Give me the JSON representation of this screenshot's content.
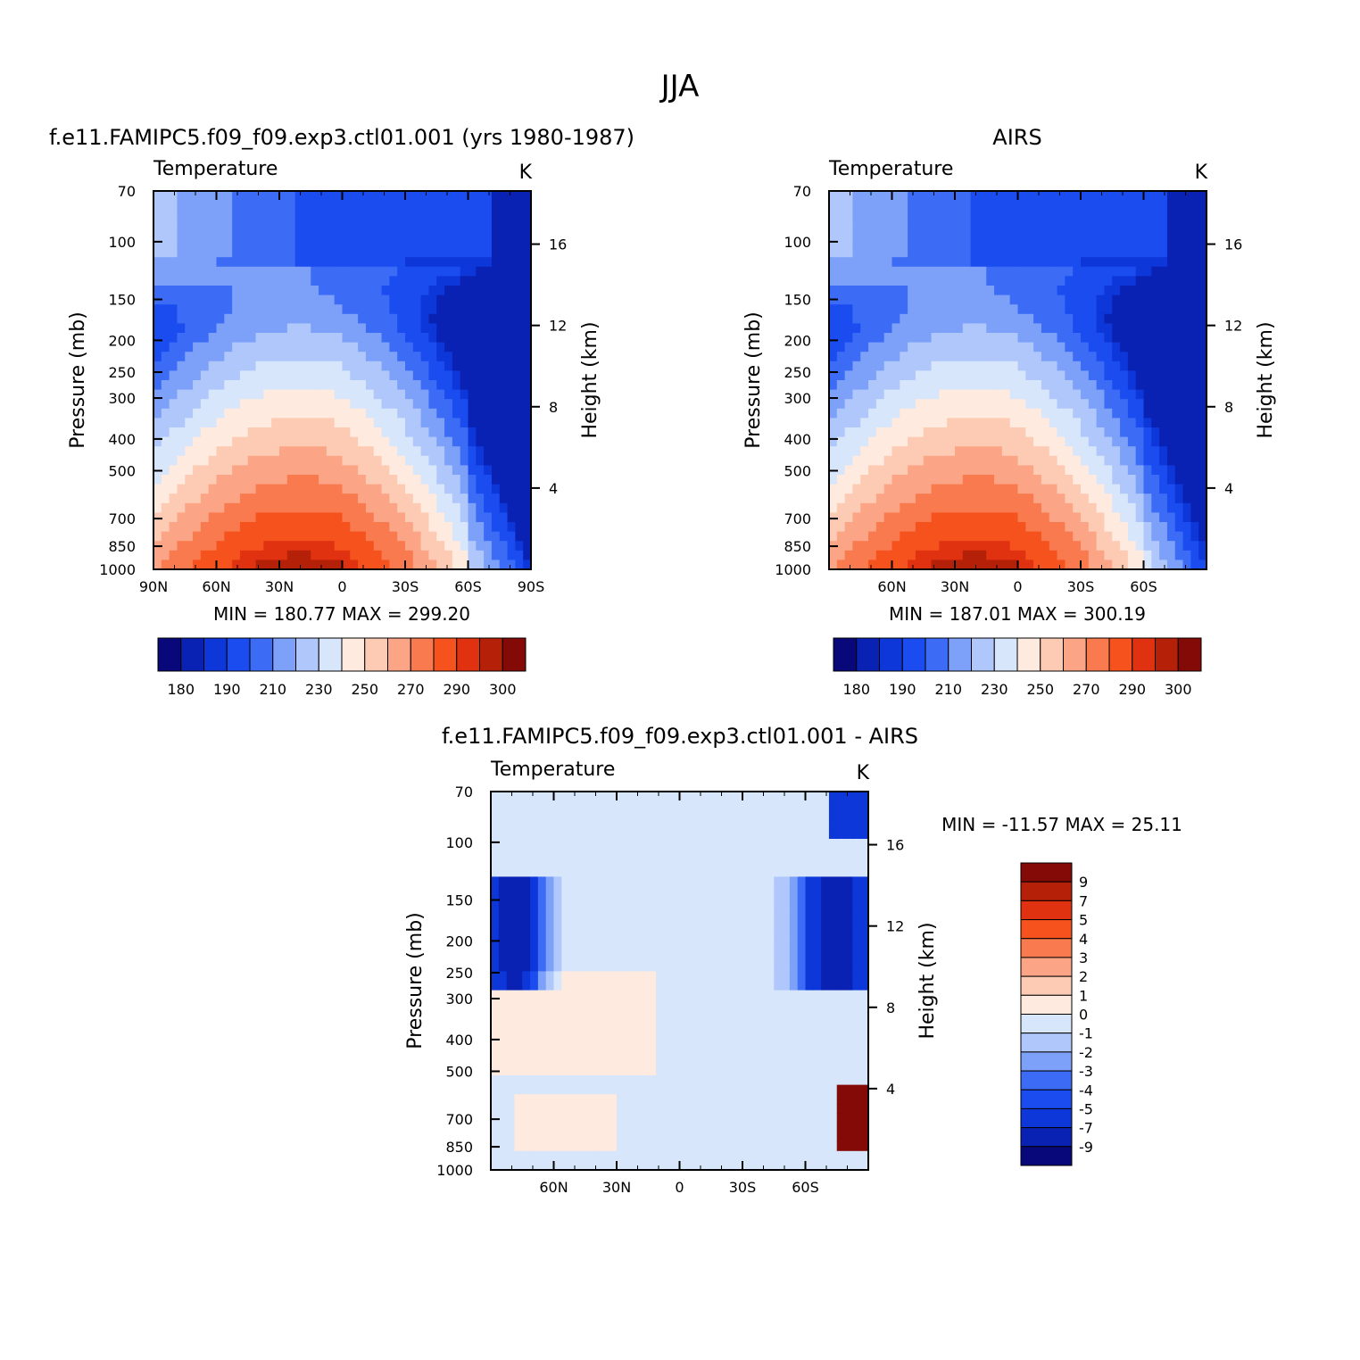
{
  "figure_title": "JJA",
  "colors": {
    "levels_abs": [
      "#08087a",
      "#0a22b4",
      "#0d37d8",
      "#1a4cf0",
      "#3c6cf5",
      "#7da0f8",
      "#b0c7fb",
      "#d7e6fa",
      "#feeade",
      "#fdcbb3",
      "#fca586",
      "#f87a4e",
      "#f6521e",
      "#e03210",
      "#b42008",
      "#830a07"
    ],
    "levels_diff": [
      "#08087a",
      "#0a22b4",
      "#0d37d8",
      "#1a4cf0",
      "#3c6cf5",
      "#7da0f8",
      "#b0c7fb",
      "#d7e6fa",
      "#feeade",
      "#fdcbb3",
      "#fca586",
      "#f87a4e",
      "#f6521e",
      "#e03210",
      "#b42008",
      "#830a07"
    ]
  },
  "panels": [
    {
      "title": "f.e11.FAMIPC5.f09_f09.exp3.ctl01.001 (yrs 1980-1987)",
      "left_label": "Temperature",
      "unit": "K",
      "y_label": "Pressure (mb)",
      "y2_label": "Height (km)",
      "stats": "MIN = 180.77   MAX = 299.20",
      "x_ticks": [
        "90N",
        "60N",
        "30N",
        "0",
        "30S",
        "60S",
        "90S"
      ],
      "p_ticks": [
        "70",
        "100",
        "150",
        "200",
        "250",
        "300",
        "400",
        "500",
        "700",
        "850",
        "1000"
      ],
      "h_ticks": [
        "16",
        "12",
        "8",
        "4"
      ],
      "colorbar_labels": [
        "180",
        "190",
        "210",
        "230",
        "250",
        "270",
        "290",
        "300"
      ]
    },
    {
      "title": "AIRS",
      "left_label": "Temperature",
      "unit": "K",
      "y_label": "Pressure (mb)",
      "y2_label": "Height (km)",
      "stats": "MIN = 187.01   MAX = 300.19",
      "x_ticks": [
        "",
        "60N",
        "30N",
        "0",
        "30S",
        "60S",
        ""
      ],
      "p_ticks": [
        "70",
        "100",
        "150",
        "200",
        "250",
        "300",
        "400",
        "500",
        "700",
        "850",
        "1000"
      ],
      "h_ticks": [
        "16",
        "12",
        "8",
        "4"
      ],
      "colorbar_labels": [
        "180",
        "190",
        "210",
        "230",
        "250",
        "270",
        "290",
        "300"
      ]
    },
    {
      "title": "f.e11.FAMIPC5.f09_f09.exp3.ctl01.001 - AIRS",
      "left_label": "Temperature",
      "unit": "K",
      "y_label": "Pressure (mb)",
      "y2_label": "Height (km)",
      "stats": "MIN = -11.57   MAX =   25.11",
      "x_ticks": [
        "",
        "60N",
        "30N",
        "0",
        "30S",
        "60S",
        ""
      ],
      "p_ticks": [
        "70",
        "100",
        "150",
        "200",
        "250",
        "300",
        "400",
        "500",
        "700",
        "850",
        "1000"
      ],
      "h_ticks": [
        "16",
        "12",
        "8",
        "4"
      ],
      "colorbar_labels": [
        "9",
        "7",
        "5",
        "4",
        "3",
        "2",
        "1",
        "0",
        "-1",
        "-2",
        "-3",
        "-4",
        "-5",
        "-7",
        "-9"
      ]
    }
  ],
  "chart_data": [
    {
      "type": "heatmap",
      "title": "f.e11.FAMIPC5.f09_f09.exp3.ctl01.001 (yrs 1980-1987)",
      "variable": "Temperature",
      "unit": "K",
      "xlabel": "",
      "ylabel": "Pressure (mb)",
      "y2label": "Height (km)",
      "x": [
        "90N",
        "60N",
        "30N",
        "0",
        "30S",
        "60S",
        "90S"
      ],
      "x_values": [
        90,
        60,
        30,
        0,
        -30,
        -60,
        -90
      ],
      "y_pressure": [
        70,
        100,
        150,
        200,
        250,
        300,
        400,
        500,
        700,
        850,
        1000
      ],
      "ylim": [
        1000,
        70
      ],
      "y_log_scale": true,
      "contour_levels": [
        180,
        185,
        190,
        200,
        210,
        220,
        230,
        240,
        250,
        260,
        270,
        280,
        290,
        295,
        300
      ],
      "min": 180.77,
      "max": 299.2
    },
    {
      "type": "heatmap",
      "title": "AIRS",
      "variable": "Temperature",
      "unit": "K",
      "xlabel": "",
      "ylabel": "Pressure (mb)",
      "y2label": "Height (km)",
      "x": [
        "60N",
        "30N",
        "0",
        "30S",
        "60S"
      ],
      "x_values": [
        60,
        30,
        0,
        -30,
        -60
      ],
      "y_pressure": [
        70,
        100,
        150,
        200,
        250,
        300,
        400,
        500,
        700,
        850,
        1000
      ],
      "ylim": [
        1000,
        70
      ],
      "y_log_scale": true,
      "contour_levels": [
        180,
        185,
        190,
        200,
        210,
        220,
        230,
        240,
        250,
        260,
        270,
        280,
        290,
        295,
        300
      ],
      "min": 187.01,
      "max": 300.19
    },
    {
      "type": "heatmap",
      "title": "f.e11.FAMIPC5.f09_f09.exp3.ctl01.001 - AIRS",
      "variable": "Temperature",
      "unit": "K",
      "xlabel": "",
      "ylabel": "Pressure (mb)",
      "y2label": "Height (km)",
      "x": [
        "60N",
        "30N",
        "0",
        "30S",
        "60S"
      ],
      "x_values": [
        60,
        30,
        0,
        -30,
        -60
      ],
      "y_pressure": [
        70,
        100,
        150,
        200,
        250,
        300,
        400,
        500,
        700,
        850,
        1000
      ],
      "ylim": [
        1000,
        70
      ],
      "y_log_scale": true,
      "contour_levels": [
        -9,
        -7,
        -5,
        -4,
        -3,
        -2,
        -1,
        0,
        1,
        2,
        3,
        4,
        5,
        7,
        9
      ],
      "min": -11.57,
      "max": 25.11
    }
  ]
}
